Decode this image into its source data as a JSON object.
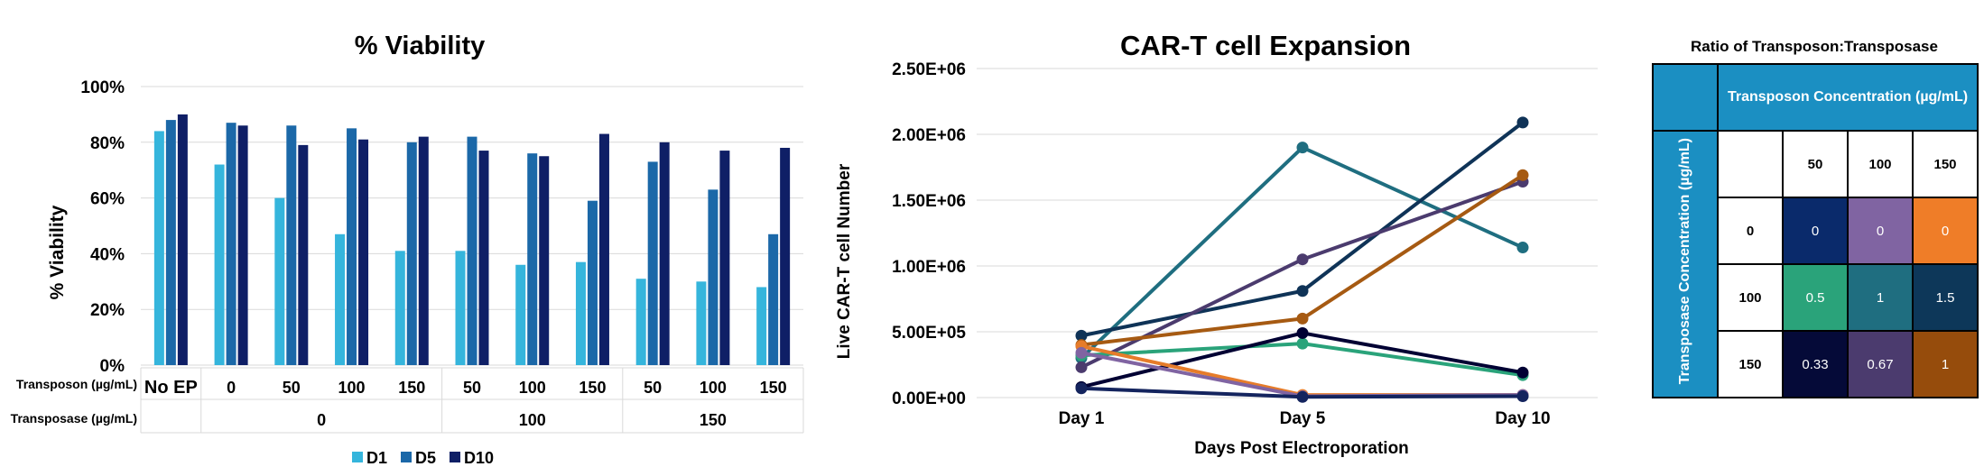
{
  "chart_data": [
    {
      "type": "bar",
      "title": "% Viability",
      "ylabel": "% Viability",
      "ylim": [
        0,
        1
      ],
      "yticks": [
        "0%",
        "20%",
        "40%",
        "60%",
        "80%",
        "100%"
      ],
      "categories": [
        "No EP",
        "0",
        "50",
        "100",
        "150",
        "50",
        "100",
        "150",
        "50",
        "100",
        "150"
      ],
      "row_labels": {
        "transposon": "Transposon (µg/mL)",
        "transposase": "Transposase (µg/mL)"
      },
      "transposase_groups": [
        {
          "label": "0",
          "span": [
            1,
            4
          ]
        },
        {
          "label": "100",
          "span": [
            5,
            7
          ]
        },
        {
          "label": "150",
          "span": [
            8,
            10
          ]
        }
      ],
      "series": [
        {
          "name": "D1",
          "color": "#35b5dc",
          "values": [
            0.84,
            0.72,
            0.6,
            0.47,
            0.41,
            0.41,
            0.36,
            0.37,
            0.31,
            0.3,
            0.28
          ]
        },
        {
          "name": "D5",
          "color": "#1b68a8",
          "values": [
            0.88,
            0.87,
            0.86,
            0.85,
            0.8,
            0.82,
            0.76,
            0.59,
            0.73,
            0.63,
            0.47
          ]
        },
        {
          "name": "D10",
          "color": "#0f1f66",
          "values": [
            0.9,
            0.86,
            0.79,
            0.81,
            0.82,
            0.77,
            0.75,
            0.83,
            0.8,
            0.77,
            0.78
          ]
        }
      ],
      "legend": "bottom",
      "grid": true
    },
    {
      "type": "line",
      "title": "CAR-T cell Expansion",
      "xlabel": "Days Post Electroporation",
      "ylabel": "Live CAR-T cell Number",
      "categories": [
        "Day 1",
        "Day 5",
        "Day 10"
      ],
      "ylim": [
        0,
        2500000
      ],
      "yticks": [
        "0.00E+00",
        "5.00E+05",
        "1.00E+06",
        "1.50E+06",
        "2.00E+06",
        "2.50E+06"
      ],
      "series": [
        {
          "color": "#1f6e80",
          "values": [
            300000,
            1900000,
            1140000
          ]
        },
        {
          "color": "#0f3357",
          "values": [
            470000,
            810000,
            2090000
          ]
        },
        {
          "color": "#4b3b6e",
          "values": [
            230000,
            1050000,
            1640000
          ]
        },
        {
          "color": "#a65a12",
          "values": [
            400000,
            600000,
            1690000
          ]
        },
        {
          "color": "#2aa37a",
          "values": [
            320000,
            410000,
            170000
          ]
        },
        {
          "color": "#000033",
          "values": [
            80000,
            490000,
            190000
          ]
        },
        {
          "color": "#e67c2a",
          "values": [
            390000,
            20000,
            20000
          ]
        },
        {
          "color": "#8064a2",
          "values": [
            340000,
            10000,
            20000
          ]
        },
        {
          "color": "#14245e",
          "values": [
            70000,
            5000,
            10000
          ]
        }
      ],
      "grid": true
    },
    {
      "type": "table",
      "title": "Ratio of Transposon:Transposase",
      "col_header": "Transposon Concentration (µg/mL)",
      "row_header": "Transposase Concentration (µg/mL)",
      "columns": [
        "50",
        "100",
        "150"
      ],
      "rows": [
        {
          "label": "0",
          "cells": [
            {
              "v": "0",
              "color": "#0a2a6b"
            },
            {
              "v": "0",
              "color": "#8064a2"
            },
            {
              "v": "0",
              "color": "#ef7d28"
            }
          ]
        },
        {
          "label": "100",
          "cells": [
            {
              "v": "0.5",
              "color": "#2aa37a"
            },
            {
              "v": "1",
              "color": "#1f6e80"
            },
            {
              "v": "1.5",
              "color": "#0d3759"
            }
          ]
        },
        {
          "label": "150",
          "cells": [
            {
              "v": "0.33",
              "color": "#050a38"
            },
            {
              "v": "0.67",
              "color": "#4b3b6e"
            },
            {
              "v": "1",
              "color": "#964c0c"
            }
          ]
        }
      ]
    }
  ]
}
